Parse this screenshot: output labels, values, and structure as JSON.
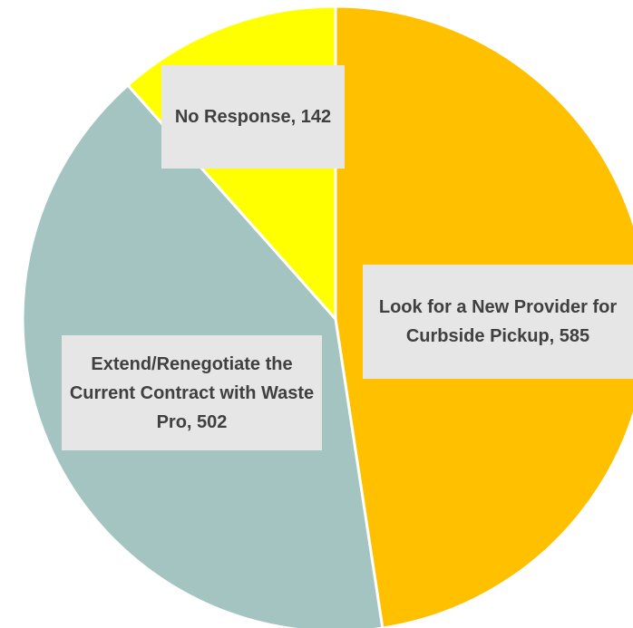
{
  "chart_data": {
    "type": "pie",
    "values": [
      585,
      502,
      142
    ],
    "value_labels": [
      "Look for a New Provider for Curbside Pickup, 585",
      "Extend/Renegotiate the Current Contract with Waste Pro, 502",
      "No Response, 142"
    ],
    "colors": [
      "#FFC000",
      "#A3C4C1",
      "#FFFF00"
    ],
    "start_angle": 0,
    "direction": "clockwise"
  }
}
